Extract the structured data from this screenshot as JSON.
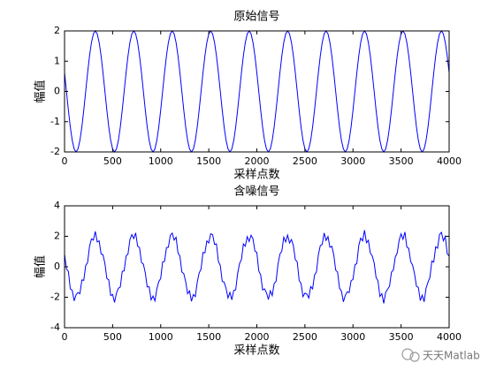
{
  "watermark": "天天Matlab",
  "chart_data": [
    {
      "type": "line",
      "title": "原始信号",
      "xlabel": "采样点数",
      "ylabel": "幅值",
      "color": "#0000ff",
      "xlim": [
        0,
        4000
      ],
      "xticks": [
        0,
        500,
        1000,
        1500,
        2000,
        2500,
        3000,
        3500,
        4000
      ],
      "ylim": [
        -2,
        2
      ],
      "yticks": [
        -2,
        -1,
        0,
        1,
        2
      ],
      "x": [
        0,
        20,
        40,
        60,
        80,
        100,
        120,
        140,
        160,
        180,
        200,
        220,
        240,
        260,
        280,
        300,
        320,
        340,
        360,
        380,
        400,
        420,
        440,
        460,
        480,
        500,
        520,
        540,
        560,
        580,
        600,
        620,
        640,
        660,
        680,
        700,
        720,
        740,
        760,
        780,
        800,
        820,
        840,
        860,
        880,
        900,
        920,
        940,
        960,
        980,
        1000,
        1020,
        1040,
        1060,
        1080,
        1100,
        1120,
        1140,
        1160,
        1180,
        1200,
        1220,
        1240,
        1260,
        1280,
        1300,
        1320,
        1340,
        1360,
        1380,
        1400,
        1420,
        1440,
        1460,
        1480,
        1500,
        1520,
        1540,
        1560,
        1580,
        1600,
        1620,
        1640,
        1660,
        1680,
        1700,
        1720,
        1740,
        1760,
        1780,
        1800,
        1820,
        1840,
        1860,
        1880,
        1900,
        1920,
        1940,
        1960,
        1980,
        2000,
        2020,
        2040,
        2060,
        2080,
        2100,
        2120,
        2140,
        2160,
        2180,
        2200,
        2220,
        2240,
        2260,
        2280,
        2300,
        2320,
        2340,
        2360,
        2380,
        2400,
        2420,
        2440,
        2460,
        2480,
        2500,
        2520,
        2540,
        2560,
        2580,
        2600,
        2620,
        2640,
        2660,
        2680,
        2700,
        2720,
        2740,
        2760,
        2780,
        2800,
        2820,
        2840,
        2860,
        2880,
        2900,
        2920,
        2940,
        2960,
        2980,
        3000,
        3020,
        3040,
        3060,
        3080,
        3100,
        3120,
        3140,
        3160,
        3180,
        3200,
        3220,
        3240,
        3260,
        3280,
        3300,
        3320,
        3340,
        3360,
        3380,
        3400,
        3420,
        3440,
        3460,
        3480,
        3500,
        3520,
        3540,
        3560,
        3580,
        3600,
        3620,
        3640,
        3660,
        3680,
        3700,
        3720,
        3740,
        3760,
        3780,
        3800,
        3820,
        3840,
        3860,
        3880,
        3900,
        3920,
        3940,
        3960,
        3980,
        4000
      ],
      "values": [
        0.618,
        0,
        -0.618,
        -1.176,
        -1.618,
        -1.902,
        -2,
        -1.902,
        -1.618,
        -1.176,
        -0.618,
        0,
        0.618,
        1.176,
        1.618,
        1.902,
        2,
        1.902,
        1.618,
        1.176,
        0.618,
        0,
        -0.618,
        -1.176,
        -1.618,
        -1.902,
        -2,
        -1.902,
        -1.618,
        -1.176,
        -0.618,
        0,
        0.618,
        1.176,
        1.618,
        1.902,
        2,
        1.902,
        1.618,
        1.176,
        0.618,
        0,
        -0.618,
        -1.176,
        -1.618,
        -1.902,
        -2,
        -1.902,
        -1.618,
        -1.176,
        -0.618,
        0,
        0.618,
        1.176,
        1.618,
        1.902,
        2,
        1.902,
        1.618,
        1.176,
        0.618,
        0,
        -0.618,
        -1.176,
        -1.618,
        -1.902,
        -2,
        -1.902,
        -1.618,
        -1.176,
        -0.618,
        0,
        0.618,
        1.176,
        1.618,
        1.902,
        2,
        1.902,
        1.618,
        1.176,
        0.618,
        0,
        -0.618,
        -1.176,
        -1.618,
        -1.902,
        -2,
        -1.902,
        -1.618,
        -1.176,
        -0.618,
        0,
        0.618,
        1.176,
        1.618,
        1.902,
        2,
        1.902,
        1.618,
        1.176,
        0.618,
        0,
        -0.618,
        -1.176,
        -1.618,
        -1.902,
        -2,
        -1.902,
        -1.618,
        -1.176,
        -0.618,
        0,
        0.618,
        1.176,
        1.618,
        1.902,
        2,
        1.902,
        1.618,
        1.176,
        0.618,
        0,
        -0.618,
        -1.176,
        -1.618,
        -1.902,
        -2,
        -1.902,
        -1.618,
        -1.176,
        -0.618,
        0,
        0.618,
        1.176,
        1.618,
        1.902,
        2,
        1.902,
        1.618,
        1.176,
        0.618,
        0,
        -0.618,
        -1.176,
        -1.618,
        -1.902,
        -2,
        -1.902,
        -1.618,
        -1.176,
        -0.618,
        0,
        0.618,
        1.176,
        1.618,
        1.902,
        2,
        1.902,
        1.618,
        1.176,
        0.618,
        0,
        -0.618,
        -1.176,
        -1.618,
        -1.902,
        -2,
        -1.902,
        -1.618,
        -1.176,
        -0.618,
        0,
        0.618,
        1.176,
        1.618,
        1.902,
        2,
        1.902,
        1.618,
        1.176,
        0.618,
        0,
        -0.618,
        -1.176,
        -1.618,
        -1.902,
        -2,
        -1.902,
        -1.618,
        -1.176,
        -0.618,
        0,
        0.618,
        1.176,
        1.618,
        1.902,
        2,
        1.902,
        1.618,
        1.176,
        0.618
      ]
    },
    {
      "type": "line",
      "title": "含噪信号",
      "xlabel": "采样点数",
      "ylabel": "幅值",
      "color": "#0000ff",
      "xlim": [
        0,
        4000
      ],
      "xticks": [
        0,
        500,
        1000,
        1500,
        2000,
        2500,
        3000,
        3500,
        4000
      ],
      "ylim": [
        -4,
        4
      ],
      "yticks": [
        -4,
        -2,
        0,
        2,
        4
      ],
      "x": [
        0,
        20,
        40,
        60,
        80,
        100,
        120,
        140,
        160,
        180,
        200,
        220,
        240,
        260,
        280,
        300,
        320,
        340,
        360,
        380,
        400,
        420,
        440,
        460,
        480,
        500,
        520,
        540,
        560,
        580,
        600,
        620,
        640,
        660,
        680,
        700,
        720,
        740,
        760,
        780,
        800,
        820,
        840,
        860,
        880,
        900,
        920,
        940,
        960,
        980,
        1000,
        1020,
        1040,
        1060,
        1080,
        1100,
        1120,
        1140,
        1160,
        1180,
        1200,
        1220,
        1240,
        1260,
        1280,
        1300,
        1320,
        1340,
        1360,
        1380,
        1400,
        1420,
        1440,
        1460,
        1480,
        1500,
        1520,
        1540,
        1560,
        1580,
        1600,
        1620,
        1640,
        1660,
        1680,
        1700,
        1720,
        1740,
        1760,
        1780,
        1800,
        1820,
        1840,
        1860,
        1880,
        1900,
        1920,
        1940,
        1960,
        1980,
        2000,
        2020,
        2040,
        2060,
        2080,
        2100,
        2120,
        2140,
        2160,
        2180,
        2200,
        2220,
        2240,
        2260,
        2280,
        2300,
        2320,
        2340,
        2360,
        2380,
        2400,
        2420,
        2440,
        2460,
        2480,
        2500,
        2520,
        2540,
        2560,
        2580,
        2600,
        2620,
        2640,
        2660,
        2680,
        2700,
        2720,
        2740,
        2760,
        2780,
        2800,
        2820,
        2840,
        2860,
        2880,
        2900,
        2920,
        2940,
        2960,
        2980,
        3000,
        3020,
        3040,
        3060,
        3080,
        3100,
        3120,
        3140,
        3160,
        3180,
        3200,
        3220,
        3240,
        3260,
        3280,
        3300,
        3320,
        3340,
        3360,
        3380,
        3400,
        3420,
        3440,
        3460,
        3480,
        3500,
        3520,
        3540,
        3560,
        3580,
        3600,
        3620,
        3640,
        3660,
        3680,
        3700,
        3720,
        3740,
        3760,
        3780,
        3800,
        3820,
        3840,
        3860,
        3880,
        3900,
        3920,
        3940,
        3960,
        3980,
        4000
      ],
      "values": [
        0.83,
        -0.15,
        -0.3,
        -1.45,
        -1.54,
        -2.24,
        -1.83,
        -1.69,
        -1.77,
        -0.86,
        -0.89,
        0.08,
        0.28,
        1.35,
        1.83,
        1.75,
        2.32,
        1.63,
        1.7,
        0.84,
        0.79,
        0.21,
        -0.77,
        -0.86,
        -1.89,
        -1.82,
        -2.34,
        -1.73,
        -1.41,
        -1.33,
        -0.3,
        -0.27,
        0.7,
        0.84,
        1.79,
        2.11,
        1.85,
        2.22,
        1.35,
        1.26,
        0.28,
        0.17,
        -0.41,
        -1.33,
        -1.3,
        -2.17,
        -1.92,
        -2.24,
        -1.45,
        -0.97,
        -0.77,
        0.32,
        0.35,
        1.26,
        1.28,
        2.07,
        2.21,
        1.75,
        1.94,
        0.91,
        0.7,
        -0.34,
        -0.45,
        -0.97,
        -1.77,
        -1.58,
        -2.27,
        -1.82,
        -1.96,
        -1.01,
        -0.41,
        -0.15,
        0.94,
        0.91,
        1.7,
        1.56,
        2.17,
        2.11,
        1.47,
        1.5,
        0.35,
        0.08,
        -0.96,
        -1.01,
        -1.41,
        -2.05,
        -1.68,
        -2.17,
        -1.54,
        -1.52,
        -0.45,
        0.21,
        0.47,
        1.5,
        1.35,
        1.98,
        1.66,
        2.07,
        1.83,
        1.03,
        0.94,
        -0.27,
        -0.54,
        -1.52,
        -1.45,
        -1.69,
        -2.15,
        -1.58,
        -1.89,
        -1.1,
        -0.96,
        0.17,
        0.83,
        1.03,
        1.94,
        1.63,
        2.08,
        1.56,
        1.79,
        1.39,
        0.47,
        0.32,
        -0.89,
        -1.1,
        -1.96,
        -1.73,
        -1.79,
        -2.05,
        -1.3,
        -1.45,
        -0.54,
        -0.34,
        0.79,
        1.39,
        1.47,
        2.22,
        1.73,
        1.98,
        1.28,
        1.35,
        0.79,
        -0.22,
        -0.35,
        -1.4,
        -1.6,
        -2.3,
        -1.88,
        -1.64,
        -1.7,
        -0.92,
        -0.83,
        0.12,
        0.22,
        1.4,
        1.88,
        1.7,
        2.4,
        1.58,
        1.74,
        0.9,
        0.72,
        0.26,
        -0.7,
        -0.92,
        -1.95,
        -1.76,
        -2.4,
        -1.68,
        -1.47,
        -1.28,
        -0.36,
        -0.21,
        0.64,
        0.9,
        1.74,
        2.16,
        1.8,
        2.28,
        1.3,
        1.2,
        0.34,
        0.11,
        -0.46,
        -1.28,
        -1.36,
        -2.22,
        -1.86,
        -2.3,
        -1.4,
        -1.02,
        -0.71,
        0.38,
        0.3,
        1.31,
        1.22,
        2.12,
        2.26,
        1.7,
        1.99,
        0.86,
        0.7
      ]
    }
  ]
}
